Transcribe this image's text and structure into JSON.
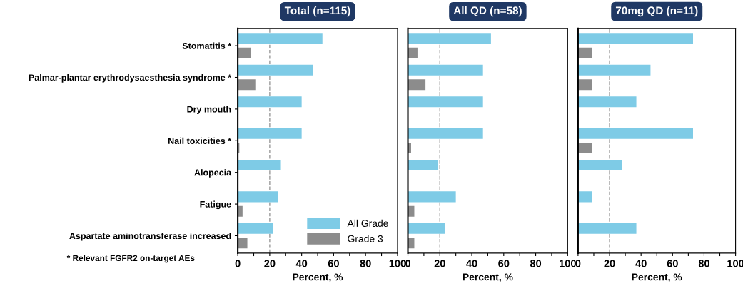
{
  "chart_data": [
    {
      "type": "bar",
      "orientation": "horizontal",
      "title": "Total (n=115)",
      "xlabel": "Percent, %",
      "categories": [
        "Stomatitis *",
        "Palmar-plantar erythrodysaesthesia syndrome *",
        "Dry mouth",
        "Nail toxicities *",
        "Alopecia",
        "Fatigue",
        "Aspartate aminotransferase increased"
      ],
      "series": [
        {
          "name": "All Grade",
          "color": "#7ecbe6",
          "values": [
            53,
            47,
            40,
            40,
            27,
            25,
            22
          ]
        },
        {
          "name": "Grade 3",
          "color": "#8c8c8c",
          "values": [
            8,
            11,
            null,
            1,
            null,
            3,
            6
          ]
        }
      ],
      "xlim": [
        0,
        100
      ],
      "xticks": [
        0,
        {
          "value": 10,
          "label": null
        },
        20,
        {
          "value": 30,
          "label": null
        },
        40,
        {
          "value": 50,
          "label": null
        },
        60,
        {
          "value": 70,
          "label": null
        },
        80,
        {
          "value": 90,
          "label": null
        },
        100
      ],
      "ref_lines": [
        {
          "axis": "x",
          "value": 20,
          "color": "#999999",
          "line_style": "dashed"
        }
      ],
      "legend": "bottom right",
      "grid": false,
      "annotations": [
        "* Relevant FGFR2 on-target AEs"
      ]
    },
    {
      "type": "bar",
      "orientation": "horizontal",
      "title": "All QD (n=58)",
      "xlabel": "Percent, %",
      "categories": [
        null,
        null,
        null,
        null,
        null,
        null,
        null
      ],
      "series": [
        {
          "color": "#7ecbe6",
          "values": [
            52,
            47,
            47,
            47,
            19,
            30,
            23
          ]
        },
        {
          "color": "#8c8c8c",
          "values": [
            6,
            11,
            null,
            2,
            null,
            4,
            4
          ]
        }
      ],
      "xlim": [
        0,
        100
      ],
      "xticks": [
        0,
        {
          "value": 10,
          "label": null
        },
        20,
        {
          "value": 30,
          "label": null
        },
        40,
        {
          "value": 50,
          "label": null
        },
        60,
        {
          "value": 70,
          "label": null
        },
        80,
        {
          "value": 90,
          "label": null
        },
        100
      ],
      "ref_lines": [
        {
          "axis": "x",
          "value": 20,
          "color": "#999999",
          "line_style": "dashed"
        }
      ],
      "tick_labels": "x",
      "grid": false
    },
    {
      "type": "bar",
      "orientation": "horizontal",
      "title": "70mg QD (n=11)",
      "xlabel": "Percent, %",
      "categories": [
        null,
        null,
        null,
        null,
        null,
        null,
        null
      ],
      "series": [
        {
          "color": "#7ecbe6",
          "values": [
            73,
            46,
            37,
            73,
            28,
            9,
            37
          ]
        },
        {
          "color": "#8c8c8c",
          "values": [
            9,
            9,
            null,
            9,
            null,
            null,
            null
          ]
        }
      ],
      "xlim": [
        0,
        100
      ],
      "xticks": [
        0,
        {
          "value": 10,
          "label": null
        },
        20,
        {
          "value": 30,
          "label": null
        },
        40,
        {
          "value": 50,
          "label": null
        },
        60,
        {
          "value": 70,
          "label": null
        },
        80,
        {
          "value": 90,
          "label": null
        },
        100
      ],
      "ref_lines": [
        {
          "axis": "x",
          "value": 20,
          "color": "#999999",
          "line_style": "dashed"
        }
      ],
      "tick_labels": "x",
      "grid": false
    }
  ]
}
